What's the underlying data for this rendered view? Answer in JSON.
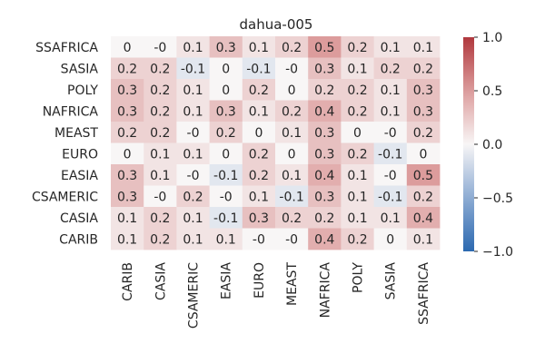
{
  "chart_data": {
    "type": "heatmap",
    "title": "dahua-005",
    "rows": [
      "SSAFRICA",
      "SASIA",
      "POLY",
      "NAFRICA",
      "MEAST",
      "EURO",
      "EASIA",
      "CSAMERIC",
      "CASIA",
      "CARIB"
    ],
    "columns": [
      "CARIB",
      "CASIA",
      "CSAMERIC",
      "EASIA",
      "EURO",
      "MEAST",
      "NAFRICA",
      "POLY",
      "SASIA",
      "SSAFRICA"
    ],
    "values": [
      [
        0,
        0,
        0.1,
        0.3,
        0.1,
        0.2,
        0.5,
        0.2,
        0.1,
        0.1
      ],
      [
        0.2,
        0.2,
        -0.1,
        0,
        -0.1,
        0,
        0.3,
        0.1,
        0.2,
        0.2
      ],
      [
        0.3,
        0.2,
        0.1,
        0,
        0.2,
        0,
        0.2,
        0.2,
        0.1,
        0.3
      ],
      [
        0.3,
        0.2,
        0.1,
        0.3,
        0.1,
        0.2,
        0.4,
        0.2,
        0.1,
        0.3
      ],
      [
        0.2,
        0.2,
        0,
        0.2,
        0,
        0.1,
        0.3,
        0,
        0,
        0.2
      ],
      [
        0,
        0.1,
        0.1,
        0,
        0.2,
        0,
        0.3,
        0.2,
        -0.1,
        0
      ],
      [
        0.3,
        0.1,
        0,
        -0.1,
        0.2,
        0.1,
        0.4,
        0.1,
        0,
        0.5
      ],
      [
        0.3,
        0,
        0.2,
        0,
        0.1,
        -0.1,
        0.3,
        0.1,
        -0.1,
        0.2
      ],
      [
        0.1,
        0.2,
        0.1,
        -0.1,
        0.3,
        0.2,
        0.2,
        0.1,
        0.1,
        0.4
      ],
      [
        0.1,
        0.2,
        0.1,
        0.1,
        0,
        0,
        0.4,
        0.2,
        0,
        0.1
      ]
    ],
    "annotations": [
      [
        "0",
        "-0",
        "0.1",
        "0.3",
        "0.1",
        "0.2",
        "0.5",
        "0.2",
        "0.1",
        "0.1"
      ],
      [
        "0.2",
        "0.2",
        "-0.1",
        "0",
        "-0.1",
        "-0",
        "0.3",
        "0.1",
        "0.2",
        "0.2"
      ],
      [
        "0.3",
        "0.2",
        "0.1",
        "0",
        "0.2",
        "0",
        "0.2",
        "0.2",
        "0.1",
        "0.3"
      ],
      [
        "0.3",
        "0.2",
        "0.1",
        "0.3",
        "0.1",
        "0.2",
        "0.4",
        "0.2",
        "0.1",
        "0.3"
      ],
      [
        "0.2",
        "0.2",
        "-0",
        "0.2",
        "0",
        "0.1",
        "0.3",
        "0",
        "-0",
        "0.2"
      ],
      [
        "0",
        "0.1",
        "0.1",
        "0",
        "0.2",
        "0",
        "0.3",
        "0.2",
        "-0.1",
        "0"
      ],
      [
        "0.3",
        "0.1",
        "-0",
        "-0.1",
        "0.2",
        "0.1",
        "0.4",
        "0.1",
        "-0",
        "0.5"
      ],
      [
        "0.3",
        "-0",
        "0.2",
        "-0",
        "0.1",
        "-0.1",
        "0.3",
        "0.1",
        "-0.1",
        "0.2"
      ],
      [
        "0.1",
        "0.2",
        "0.1",
        "-0.1",
        "0.3",
        "0.2",
        "0.2",
        "0.1",
        "0.1",
        "0.4"
      ],
      [
        "0.1",
        "0.2",
        "0.1",
        "0.1",
        "-0",
        "-0",
        "0.4",
        "0.2",
        "0",
        "0.1"
      ]
    ],
    "vmin": -1.0,
    "vmax": 1.0,
    "colormap": "vlag",
    "colorbar": {
      "ticks": [
        1.0,
        0.5,
        0.0,
        -0.5,
        -1.0
      ],
      "tick_labels": [
        "1.0",
        "0.5",
        "0.0",
        "−0.5",
        "−1.0"
      ],
      "placement": "right"
    },
    "xlabel": "",
    "ylabel": "",
    "grid": false
  }
}
